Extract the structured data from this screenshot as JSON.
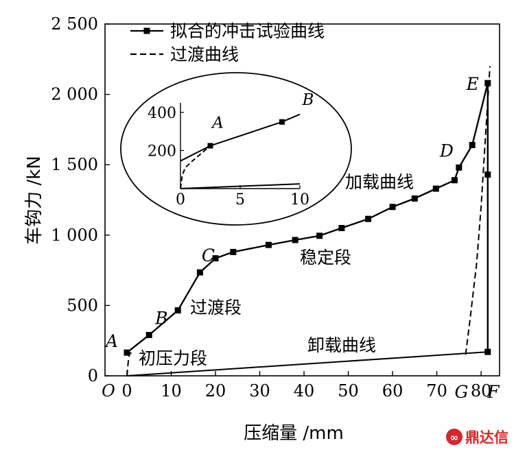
{
  "chart_data": {
    "type": "line",
    "xlabel": "压缩量 /mm",
    "ylabel": "车钩力 /kN",
    "origin_label": "O",
    "xlim": [
      0,
      85
    ],
    "ylim": [
      0,
      2500
    ],
    "x_ticks": [
      0,
      10,
      20,
      30,
      40,
      50,
      60,
      70,
      80
    ],
    "y_ticks": [
      0,
      500,
      1000,
      1500,
      2000,
      2500
    ],
    "y_tick_labels": [
      "0",
      "500",
      "1 000",
      "1 500",
      "2 000",
      "2 500"
    ],
    "legend": {
      "placement": "top-left",
      "entries": [
        {
          "label": "拟合的冲击试验曲线",
          "style": "solid-square"
        },
        {
          "label": "过渡曲线",
          "style": "dashed"
        }
      ]
    },
    "series": [
      {
        "name": "拟合的冲击试验曲线",
        "style": "solid-square",
        "x": [
          0,
          5,
          11.5,
          16.5,
          20,
          24,
          32,
          38,
          43.5,
          48.5,
          54.5,
          60,
          65,
          69.8,
          74,
          75,
          78,
          81.5,
          81.5,
          81.5
        ],
        "y": [
          165,
          290,
          465,
          735,
          835,
          880,
          930,
          965,
          995,
          1050,
          1115,
          1200,
          1260,
          1330,
          1390,
          1480,
          1640,
          2080,
          1430,
          170
        ]
      },
      {
        "name": "卸载曲线",
        "style": "solid",
        "x": [
          0,
          81.5
        ],
        "y": [
          0,
          170
        ]
      },
      {
        "name": "过渡曲线",
        "style": "dashed",
        "x": [
          0,
          0.3,
          0.6,
          1
        ],
        "y": [
          0,
          100,
          155,
          165
        ]
      },
      {
        "name": "过渡曲线",
        "style": "dashed",
        "x": [
          76.5,
          77.5,
          79,
          80,
          81,
          81.8,
          82
        ],
        "y": [
          150,
          400,
          800,
          1200,
          1700,
          2100,
          2200
        ]
      }
    ],
    "point_labels": [
      {
        "text": "A",
        "x": 0,
        "y": 165
      },
      {
        "text": "B",
        "x": 5,
        "y": 290
      },
      {
        "text": "C",
        "x": 16.5,
        "y": 735
      },
      {
        "text": "D",
        "x": 75,
        "y": 1480
      },
      {
        "text": "E",
        "x": 81.5,
        "y": 2080
      },
      {
        "text": "F",
        "x": 81.5,
        "y": 0
      },
      {
        "text": "G",
        "x": 76.5,
        "y": 0
      }
    ],
    "annotations": [
      "初压力段",
      "过渡段",
      "稳定段",
      "加载曲线",
      "卸载曲线"
    ],
    "inset": {
      "xlim": [
        0,
        10
      ],
      "ylim": [
        0,
        450
      ],
      "x_ticks": [
        0,
        5,
        10
      ],
      "y_ticks": [
        200,
        400
      ],
      "point_labels": [
        "A",
        "B"
      ],
      "loading": {
        "x": [
          0,
          2.5,
          8.5,
          10
        ],
        "y": [
          145,
          225,
          350,
          390
        ]
      },
      "transition": {
        "x": [
          0,
          0.15,
          0.4,
          1,
          2.5
        ],
        "y": [
          0,
          70,
          110,
          145,
          225
        ]
      },
      "unloading": {
        "x": [
          0,
          10
        ],
        "y": [
          0,
          25
        ]
      }
    }
  },
  "watermark": "鼎达信"
}
